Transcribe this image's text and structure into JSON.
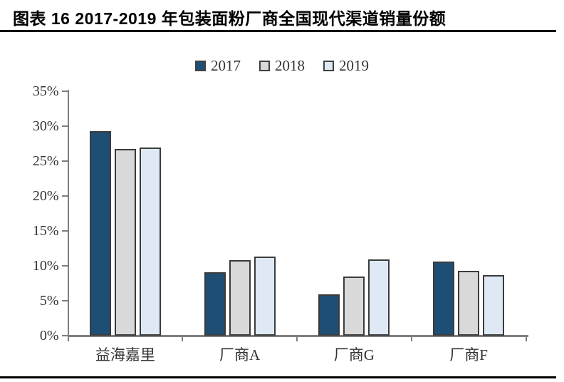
{
  "header": {
    "title": "图表 16 2017-2019 年包装面粉厂商全国现代渠道销量份额"
  },
  "chart_data": {
    "type": "bar",
    "title": "2017-2019 年包装面粉厂商全国现代渠道销量份额",
    "categories": [
      "益海嘉里",
      "厂商A",
      "厂商G",
      "厂商F"
    ],
    "series": [
      {
        "name": "2017",
        "color": "#1F4E74",
        "values": [
          29.3,
          9.1,
          5.9,
          10.6
        ]
      },
      {
        "name": "2018",
        "color": "#D9D9D9",
        "values": [
          26.7,
          10.8,
          8.5,
          9.3
        ]
      },
      {
        "name": "2019",
        "color": "#DEE9F5",
        "values": [
          26.9,
          11.3,
          10.9,
          8.7
        ]
      }
    ],
    "xlabel": "",
    "ylabel": "",
    "ylim": [
      0,
      35
    ],
    "ytick_step": 5,
    "ytick_labels": [
      "0%",
      "5%",
      "10%",
      "15%",
      "20%",
      "25%",
      "30%",
      "35%"
    ],
    "grid": false,
    "legend_position": "top",
    "colors": {
      "bar_border": "#3B3B3B",
      "axis": "#7F7F7F",
      "text": "#333333",
      "rule": "#000000"
    }
  }
}
